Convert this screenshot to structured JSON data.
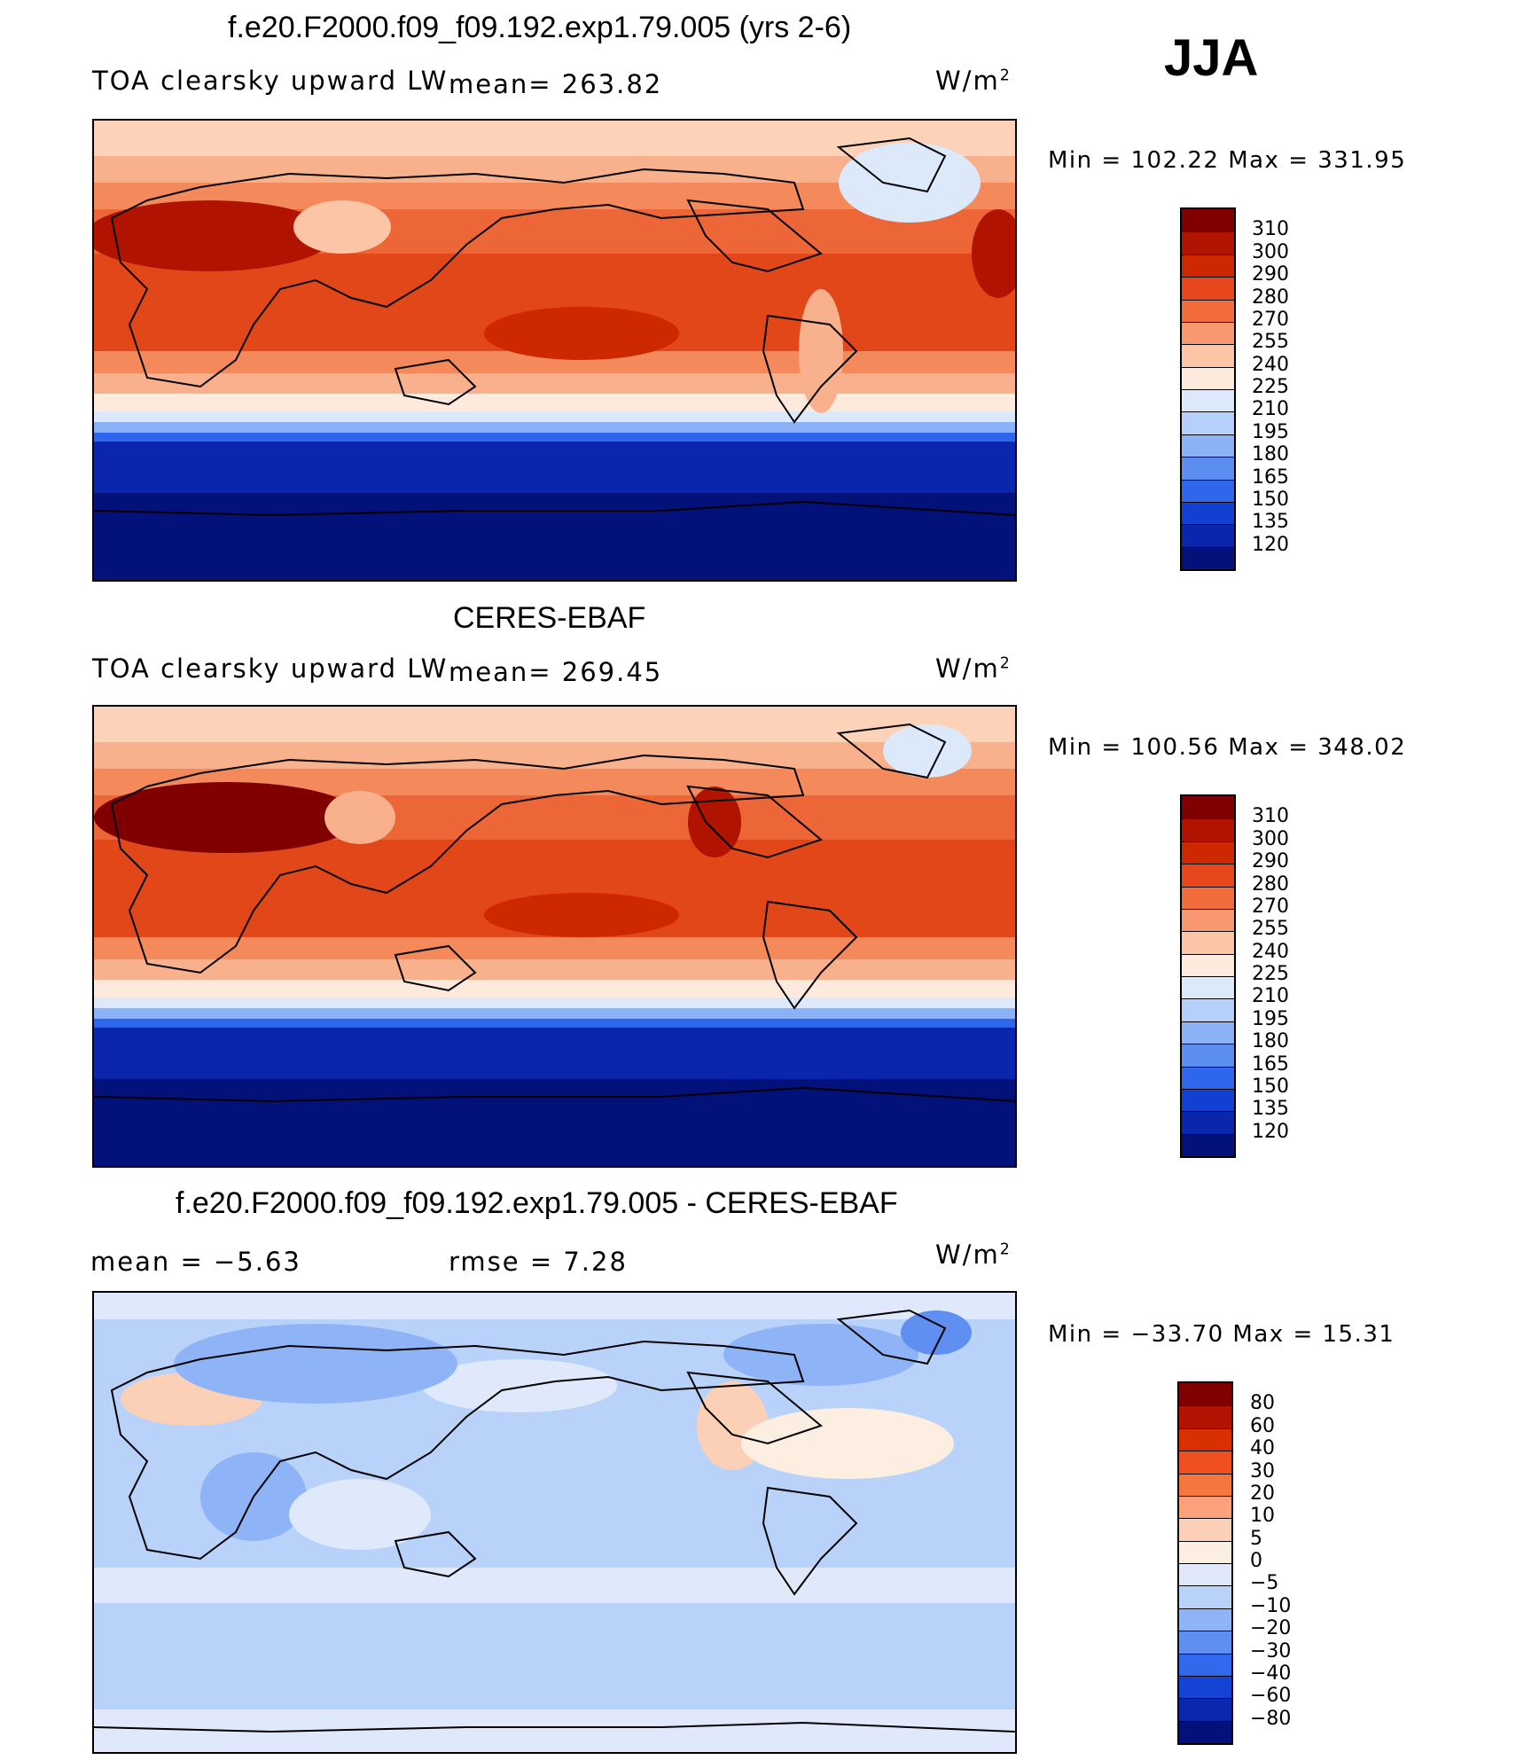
{
  "season": "JJA",
  "units": "W/m",
  "units_exp": "2",
  "panels": [
    {
      "title": "f.e20.F2000.f09_f09.192.exp1.79.005 (yrs 2-6)",
      "variable": "TOA clearsky upward LW",
      "stat1": "mean= 263.82",
      "minmax": "Min = 102.22 Max = 331.95"
    },
    {
      "title": "CERES-EBAF",
      "variable": "TOA clearsky upward LW",
      "stat1": "mean= 269.45",
      "minmax": "Min = 100.56 Max = 348.02"
    },
    {
      "title": "f.e20.F2000.f09_f09.192.exp1.79.005 - CERES-EBAF",
      "variable": "mean =   −5.63",
      "stat1": "rmse =    7.28",
      "minmax": "Min = −33.70 Max =  15.31"
    }
  ],
  "colorbars": {
    "field": {
      "labels": [
        "310",
        "300",
        "290",
        "280",
        "270",
        "255",
        "240",
        "225",
        "210",
        "195",
        "180",
        "165",
        "150",
        "135",
        "120"
      ],
      "colors": [
        "#800000",
        "#b01400",
        "#cd2800",
        "#e8461c",
        "#f26b3a",
        "#f89870",
        "#fcc6a6",
        "#feeadc",
        "#dbe9fb",
        "#b5d0fa",
        "#8bb1f6",
        "#5c8ef2",
        "#2f67ec",
        "#1140d2",
        "#0a26ac",
        "#03127a"
      ]
    },
    "diff": {
      "labels": [
        "80",
        "60",
        "40",
        "30",
        "20",
        "10",
        "5",
        "0",
        "−5",
        "−10",
        "−20",
        "−30",
        "−40",
        "−60",
        "−80"
      ],
      "colors": [
        "#800000",
        "#b01400",
        "#d83000",
        "#ee5020",
        "#f6763f",
        "#fba27c",
        "#fcd0b6",
        "#fdeee2",
        "#dfe9fb",
        "#b9d2fa",
        "#8eb3f6",
        "#5f8ff1",
        "#3268eb",
        "#1543d4",
        "#0b27ad",
        "#03127a"
      ]
    }
  }
}
